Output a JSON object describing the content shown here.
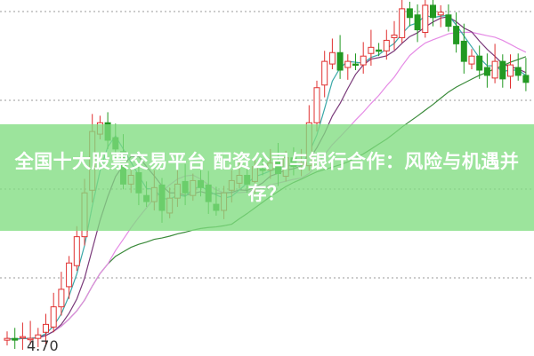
{
  "title": "全国十大股票交易平台 配资公司与银行合作：风险与机遇并存？",
  "chart_data": {
    "type": "candlestick",
    "price_label": "4.70",
    "ylim": [
      4.65,
      6.65
    ],
    "grid": "dotted horizontal",
    "colors": {
      "up": "#e03030",
      "down": "#229922",
      "ma5": "#3aa8a8",
      "ma10": "#7a3a7a",
      "ma20": "#e58ae5",
      "ma60": "#3a8a3a",
      "banner": "#80dc80"
    },
    "closes": [
      4.72,
      4.71,
      4.73,
      4.72,
      4.74,
      4.8,
      4.9,
      5.0,
      5.15,
      5.3,
      5.55,
      5.9,
      5.95,
      5.85,
      5.8,
      5.6,
      5.65,
      5.55,
      5.5,
      5.58,
      5.45,
      5.52,
      5.6,
      5.55,
      5.62,
      5.58,
      5.5,
      5.45,
      5.55,
      5.62,
      5.65,
      5.6,
      5.7,
      5.68,
      5.72,
      5.66,
      5.75,
      5.7,
      5.72,
      5.95,
      6.15,
      6.3,
      6.35,
      6.25,
      6.3,
      6.28,
      6.33,
      6.38,
      6.36,
      6.42,
      6.45,
      6.6,
      6.55,
      6.48,
      6.62,
      6.55,
      6.58,
      6.5,
      6.4,
      6.3,
      6.33,
      6.25,
      6.22,
      6.3,
      6.2,
      6.28,
      6.22,
      6.18
    ]
  }
}
